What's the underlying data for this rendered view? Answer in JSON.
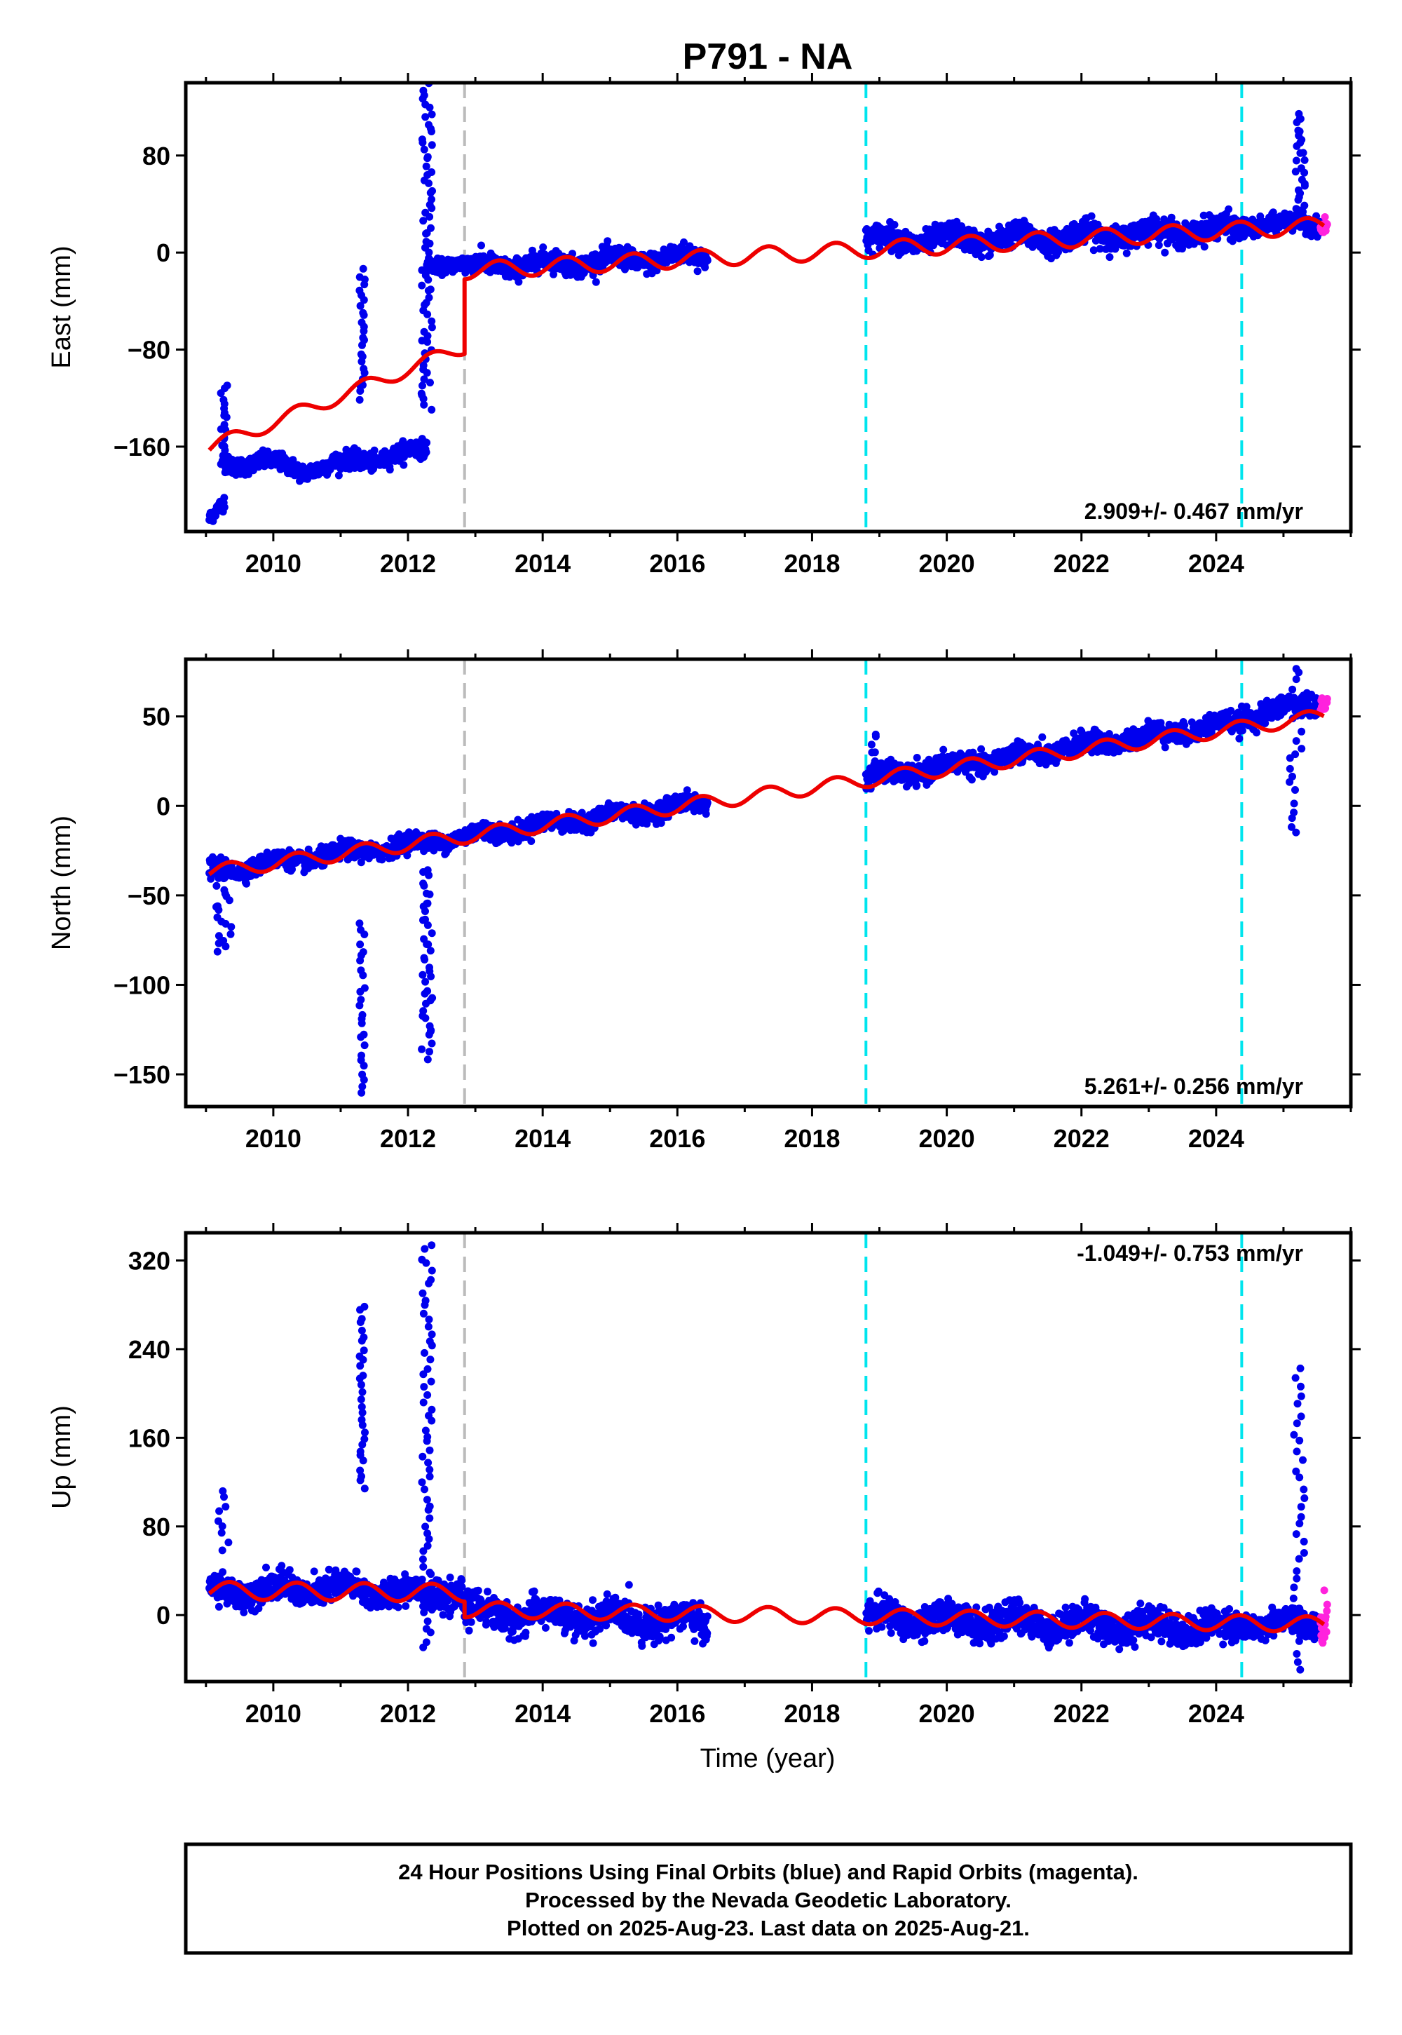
{
  "title": "P791 - NA",
  "xlabel": "Time (year)",
  "footer": {
    "lines": [
      "24 Hour Positions Using Final Orbits (blue) and Rapid Orbits (magenta).",
      "Processed by the Nevada Geodetic Laboratory.",
      "Plotted on 2025-Aug-23. Last data on 2025-Aug-21."
    ]
  },
  "colors": {
    "final_orbits": "#0000ee",
    "rapid_orbits": "#ff22dd",
    "model": "#ee0000",
    "equipment_change": "#00e5ee",
    "earthquake": "#bbbbbb"
  },
  "chart_data": [
    {
      "type": "scatter",
      "ylabel": "East (mm)",
      "rate": "2.909+/- 0.467 mm/yr",
      "xlim": [
        2008.7,
        2026.0
      ],
      "ylim": [
        -230,
        140
      ],
      "xticks": [
        2010,
        2012,
        2014,
        2016,
        2018,
        2020,
        2022,
        2024
      ],
      "yticks": [
        -160,
        -80,
        0,
        80
      ],
      "vlines": [
        {
          "x": 2012.84,
          "kind": "earthquake"
        },
        {
          "x": 2018.8,
          "kind": "equipment_change"
        },
        {
          "x": 2024.38,
          "kind": "equipment_change"
        }
      ],
      "segments": [
        {
          "start": 2009.05,
          "end": 2009.28,
          "trend": [
            [
              2009.05,
              -222
            ],
            [
              2009.28,
              -205
            ]
          ],
          "noise": 4,
          "kind": "final"
        },
        {
          "start": 2009.28,
          "end": 2010.5,
          "trend": [
            [
              2009.28,
              -175
            ],
            [
              2009.8,
              -172
            ],
            [
              2010.5,
              -180
            ]
          ],
          "noise": 5,
          "kind": "final"
        },
        {
          "start": 2010.5,
          "end": 2012.28,
          "trend": [
            [
              2010.5,
              -178
            ],
            [
              2011.5,
              -170
            ],
            [
              2012.28,
              -162
            ]
          ],
          "noise": 5,
          "kind": "final"
        },
        {
          "start": 2012.28,
          "end": 2012.84,
          "trend": [
            [
              2012.28,
              -10
            ],
            [
              2012.84,
              -8
            ]
          ],
          "noise": 4,
          "kind": "final"
        },
        {
          "start": 2012.84,
          "end": 2016.45,
          "trend": [
            [
              2012.84,
              -12
            ],
            [
              2014.5,
              -8
            ],
            [
              2016.45,
              -3
            ]
          ],
          "noise": 6,
          "kind": "final"
        },
        {
          "start": 2018.8,
          "end": 2024.38,
          "trend": [
            [
              2018.8,
              10
            ],
            [
              2021.5,
              12
            ],
            [
              2024.38,
              20
            ]
          ],
          "noise": 7,
          "kind": "final"
        },
        {
          "start": 2024.38,
          "end": 2025.55,
          "trend": [
            [
              2024.38,
              22
            ],
            [
              2025.55,
              25
            ]
          ],
          "noise": 5,
          "kind": "final"
        },
        {
          "start": 2025.55,
          "end": 2025.65,
          "trend": [
            [
              2025.55,
              22
            ],
            [
              2025.65,
              24
            ]
          ],
          "noise": 4,
          "kind": "rapid"
        }
      ],
      "outlier_clusters": [
        {
          "x": [
            2009.2,
            2009.32
          ],
          "y": [
            -175,
            -110
          ],
          "n": 20
        },
        {
          "x": [
            2011.28,
            2011.36
          ],
          "y": [
            -120,
            -15
          ],
          "n": 26
        },
        {
          "x": [
            2012.2,
            2012.36
          ],
          "y": [
            -130,
            138
          ],
          "n": 70
        },
        {
          "x": [
            2025.18,
            2025.32
          ],
          "y": [
            30,
            115
          ],
          "n": 28
        }
      ],
      "model": {
        "pieces": [
          {
            "start": 2009.05,
            "end": 2012.84,
            "a": -161,
            "b": 22,
            "t0": 2009.05,
            "amp": 6
          },
          {
            "start": 2012.84,
            "end": 2025.6,
            "a": -15,
            "b": 2.909,
            "t0": 2012.84,
            "amp": 7
          }
        ]
      }
    },
    {
      "type": "scatter",
      "ylabel": "North (mm)",
      "rate": "5.261+/- 0.256 mm/yr",
      "xlim": [
        2008.7,
        2026.0
      ],
      "ylim": [
        -168,
        82
      ],
      "xticks": [
        2010,
        2012,
        2014,
        2016,
        2018,
        2020,
        2022,
        2024
      ],
      "yticks": [
        -150,
        -100,
        -50,
        0,
        50
      ],
      "vlines": [
        {
          "x": 2012.84,
          "kind": "earthquake"
        },
        {
          "x": 2018.8,
          "kind": "equipment_change"
        },
        {
          "x": 2024.38,
          "kind": "equipment_change"
        }
      ],
      "segments": [
        {
          "start": 2009.05,
          "end": 2012.84,
          "trend": [
            [
              2009.05,
              -37
            ],
            [
              2012.84,
              -17
            ]
          ],
          "noise": 3.5,
          "kind": "final"
        },
        {
          "start": 2012.84,
          "end": 2016.45,
          "trend": [
            [
              2012.84,
              -17
            ],
            [
              2016.45,
              2
            ]
          ],
          "noise": 3.5,
          "kind": "final"
        },
        {
          "start": 2018.8,
          "end": 2024.38,
          "trend": [
            [
              2018.8,
              15
            ],
            [
              2024.38,
              47
            ]
          ],
          "noise": 4,
          "kind": "final"
        },
        {
          "start": 2024.38,
          "end": 2025.55,
          "trend": [
            [
              2024.38,
              50
            ],
            [
              2025.55,
              58
            ]
          ],
          "noise": 4,
          "kind": "final"
        },
        {
          "start": 2025.55,
          "end": 2025.65,
          "trend": [
            [
              2025.55,
              57
            ],
            [
              2025.65,
              60
            ]
          ],
          "noise": 3,
          "kind": "rapid"
        }
      ],
      "outlier_clusters": [
        {
          "x": [
            2009.15,
            2009.38
          ],
          "y": [
            -80,
            -45
          ],
          "n": 18
        },
        {
          "x": [
            2011.28,
            2011.36
          ],
          "y": [
            -162,
            -65
          ],
          "n": 26
        },
        {
          "x": [
            2012.2,
            2012.36
          ],
          "y": [
            -140,
            -35
          ],
          "n": 42
        },
        {
          "x": [
            2018.85,
            2018.95
          ],
          "y": [
            25,
            40
          ],
          "n": 6
        },
        {
          "x": [
            2025.08,
            2025.3
          ],
          "y": [
            -15,
            78
          ],
          "n": 22
        }
      ],
      "model": {
        "pieces": [
          {
            "start": 2009.05,
            "end": 2012.84,
            "a": -37,
            "b": 5.261,
            "t0": 2009.05,
            "amp": 4
          },
          {
            "start": 2012.84,
            "end": 2025.6,
            "a": -17,
            "b": 5.261,
            "t0": 2012.84,
            "amp": 4
          }
        ]
      }
    },
    {
      "type": "scatter",
      "ylabel": "Up (mm)",
      "rate": "-1.049+/- 0.753 mm/yr",
      "xlim": [
        2008.7,
        2026.0
      ],
      "ylim": [
        -60,
        345
      ],
      "xticks": [
        2010,
        2012,
        2014,
        2016,
        2018,
        2020,
        2022,
        2024
      ],
      "yticks": [
        0,
        80,
        160,
        240,
        320
      ],
      "vlines": [
        {
          "x": 2012.84,
          "kind": "earthquake"
        },
        {
          "x": 2018.8,
          "kind": "equipment_change"
        },
        {
          "x": 2024.38,
          "kind": "equipment_change"
        }
      ],
      "segments": [
        {
          "start": 2009.05,
          "end": 2012.84,
          "trend": [
            [
              2009.05,
              22
            ],
            [
              2010.9,
              24
            ],
            [
              2012.84,
              18
            ]
          ],
          "noise": 9,
          "kind": "final"
        },
        {
          "start": 2012.84,
          "end": 2016.45,
          "trend": [
            [
              2012.84,
              2
            ],
            [
              2016.45,
              -6
            ]
          ],
          "noise": 10,
          "kind": "final"
        },
        {
          "start": 2018.8,
          "end": 2024.38,
          "trend": [
            [
              2018.8,
              -3
            ],
            [
              2024.38,
              -12
            ]
          ],
          "noise": 10,
          "kind": "final"
        },
        {
          "start": 2024.38,
          "end": 2025.55,
          "trend": [
            [
              2024.38,
              -8
            ],
            [
              2025.55,
              -6
            ]
          ],
          "noise": 8,
          "kind": "final"
        },
        {
          "start": 2025.55,
          "end": 2025.65,
          "trend": [
            [
              2025.55,
              -5
            ],
            [
              2025.65,
              5
            ]
          ],
          "noise": 14,
          "kind": "rapid"
        }
      ],
      "outlier_clusters": [
        {
          "x": [
            2009.18,
            2009.34
          ],
          "y": [
            60,
            112
          ],
          "n": 9
        },
        {
          "x": [
            2011.28,
            2011.36
          ],
          "y": [
            115,
            280
          ],
          "n": 30
        },
        {
          "x": [
            2012.2,
            2012.36
          ],
          "y": [
            -30,
            335
          ],
          "n": 60
        },
        {
          "x": [
            2025.15,
            2025.32
          ],
          "y": [
            -50,
            222
          ],
          "n": 34
        }
      ],
      "model": {
        "pieces": [
          {
            "start": 2009.05,
            "end": 2012.84,
            "a": 22,
            "b": -0.5,
            "t0": 2009.05,
            "amp": 8
          },
          {
            "start": 2012.84,
            "end": 2025.6,
            "a": 5,
            "b": -1.049,
            "t0": 2012.84,
            "amp": 7
          }
        ]
      }
    }
  ]
}
